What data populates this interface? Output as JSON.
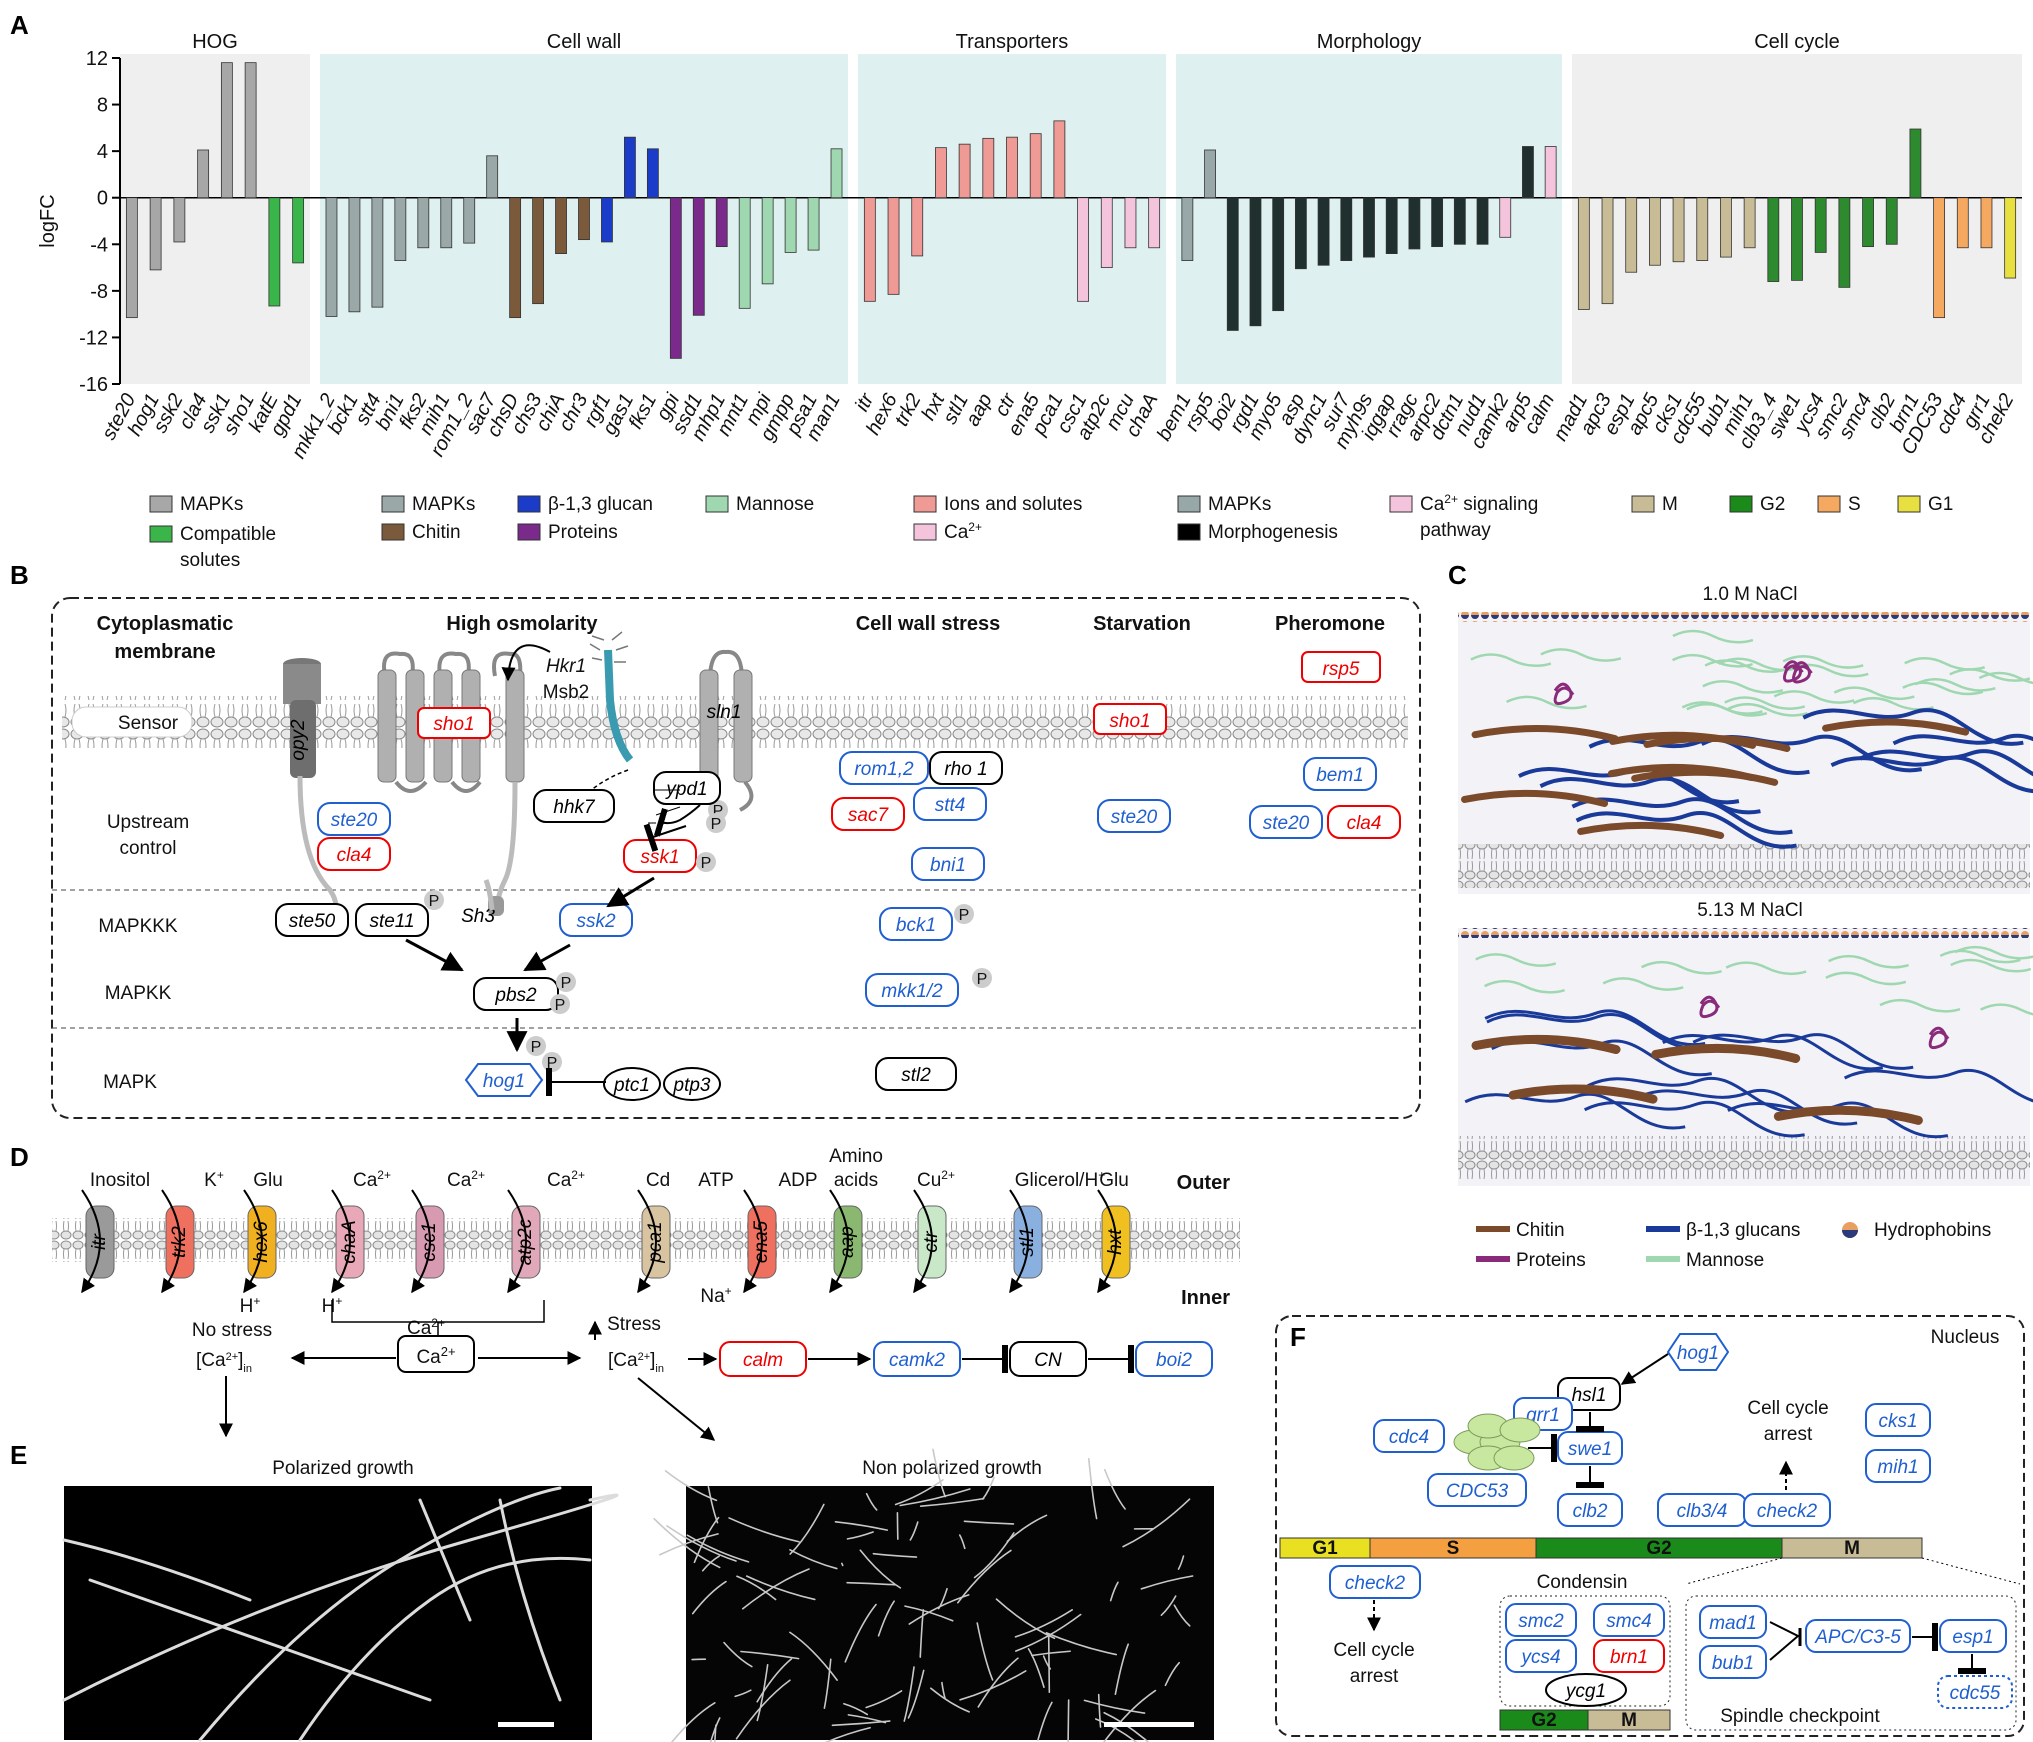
{
  "panels": {
    "A": "A",
    "B": "B",
    "C": "C",
    "D": "D",
    "E": "E",
    "F": "F"
  },
  "chart_data": {
    "type": "bar",
    "ylabel": "logFC",
    "ylim": [
      -16,
      12
    ],
    "yticks": [
      12,
      8,
      4,
      0,
      -4,
      -8,
      -12,
      -16
    ],
    "groups": [
      {
        "name": "HOG",
        "bg": "#efefef",
        "bars": [
          {
            "g": "ste20",
            "v": -10.3,
            "c": "#a7a7a7"
          },
          {
            "g": "hog1",
            "v": -6.2,
            "c": "#a7a7a7"
          },
          {
            "g": "ssk2",
            "v": -3.8,
            "c": "#a7a7a7"
          },
          {
            "g": "cla4",
            "v": 4.1,
            "c": "#a7a7a7"
          },
          {
            "g": "ssk1",
            "v": 11.6,
            "c": "#a7a7a7"
          },
          {
            "g": "sho1",
            "v": 11.6,
            "c": "#a7a7a7"
          },
          {
            "g": "katE",
            "v": -9.3,
            "c": "#39b54a"
          },
          {
            "g": "gpd1",
            "v": -5.6,
            "c": "#39b54a"
          }
        ]
      },
      {
        "name": "Cell wall",
        "bg": "#dff0f0",
        "bars": [
          {
            "g": "mkk1_2",
            "v": -10.2,
            "c": "#9aa8a8"
          },
          {
            "g": "bck1",
            "v": -9.8,
            "c": "#9aa8a8"
          },
          {
            "g": "stt4",
            "v": -9.4,
            "c": "#9aa8a8"
          },
          {
            "g": "bni1",
            "v": -5.4,
            "c": "#9aa8a8"
          },
          {
            "g": "fks2",
            "v": -4.3,
            "c": "#9aa8a8"
          },
          {
            "g": "mih1",
            "v": -4.3,
            "c": "#9aa8a8"
          },
          {
            "g": "rom1_2",
            "v": -3.9,
            "c": "#9aa8a8"
          },
          {
            "g": "sac7",
            "v": 3.6,
            "c": "#9aa8a8"
          },
          {
            "g": "chsD",
            "v": -10.3,
            "c": "#7a5a3a"
          },
          {
            "g": "chs3",
            "v": -9.1,
            "c": "#7a5a3a"
          },
          {
            "g": "chiA",
            "v": -4.8,
            "c": "#7a5a3a"
          },
          {
            "g": "chr3",
            "v": -3.6,
            "c": "#7a5a3a"
          },
          {
            "g": "rgf1",
            "v": -3.8,
            "c": "#1a3cc8"
          },
          {
            "g": "gas1",
            "v": 5.2,
            "c": "#1a3cc8"
          },
          {
            "g": "fks1",
            "v": 4.2,
            "c": "#1a3cc8"
          },
          {
            "g": "gpi",
            "v": -13.8,
            "c": "#7a2a8a"
          },
          {
            "g": "ssd1",
            "v": -10.1,
            "c": "#7a2a8a"
          },
          {
            "g": "mhp1",
            "v": -4.2,
            "c": "#7a2a8a"
          },
          {
            "g": "mnt1",
            "v": -9.5,
            "c": "#9fd8b0"
          },
          {
            "g": "mpi",
            "v": -7.4,
            "c": "#9fd8b0"
          },
          {
            "g": "gmpp",
            "v": -4.7,
            "c": "#9fd8b0"
          },
          {
            "g": "psa1",
            "v": -4.5,
            "c": "#9fd8b0"
          },
          {
            "g": "man1",
            "v": 4.2,
            "c": "#9fd8b0"
          }
        ]
      },
      {
        "name": "Transporters",
        "bg": "#dff0f0",
        "bars": [
          {
            "g": "itr",
            "v": -8.9,
            "c": "#f09a96"
          },
          {
            "g": "hex6",
            "v": -8.3,
            "c": "#f09a96"
          },
          {
            "g": "trk2",
            "v": -5.0,
            "c": "#f09a96"
          },
          {
            "g": "hxt",
            "v": 4.3,
            "c": "#f09a96"
          },
          {
            "g": "stl1",
            "v": 4.6,
            "c": "#f09a96"
          },
          {
            "g": "aap",
            "v": 5.1,
            "c": "#f09a96"
          },
          {
            "g": "ctr",
            "v": 5.2,
            "c": "#f09a96"
          },
          {
            "g": "ena5",
            "v": 5.5,
            "c": "#f09a96"
          },
          {
            "g": "pca1",
            "v": 6.6,
            "c": "#f09a96"
          },
          {
            "g": "csc1",
            "v": -8.9,
            "c": "#f4c4dc"
          },
          {
            "g": "atp2c",
            "v": -6.0,
            "c": "#f4c4dc"
          },
          {
            "g": "mcu",
            "v": -4.3,
            "c": "#f4c4dc"
          },
          {
            "g": "chaA",
            "v": -4.3,
            "c": "#f4c4dc"
          }
        ]
      },
      {
        "name": "Morphology",
        "bg": "#dff0f0",
        "bars": [
          {
            "g": "bem1",
            "v": -5.4,
            "c": "#98a8a8"
          },
          {
            "g": "rsp5",
            "v": 4.1,
            "c": "#98a8a8"
          },
          {
            "g": "boi2",
            "v": -11.4,
            "c": "#1f302f"
          },
          {
            "g": "rgd1",
            "v": -11.0,
            "c": "#1f302f"
          },
          {
            "g": "myo5",
            "v": -9.7,
            "c": "#1f302f"
          },
          {
            "g": "asp",
            "v": -6.1,
            "c": "#1f302f"
          },
          {
            "g": "dync1",
            "v": -5.8,
            "c": "#1f302f"
          },
          {
            "g": "sur7",
            "v": -5.4,
            "c": "#1f302f"
          },
          {
            "g": "myh9s",
            "v": -5.1,
            "c": "#1f302f"
          },
          {
            "g": "iqgap",
            "v": -4.8,
            "c": "#1f302f"
          },
          {
            "g": "rragc",
            "v": -4.4,
            "c": "#1f302f"
          },
          {
            "g": "arpc2",
            "v": -4.2,
            "c": "#1f302f"
          },
          {
            "g": "dctn1",
            "v": -4.0,
            "c": "#1f302f"
          },
          {
            "g": "nud1",
            "v": -4.0,
            "c": "#1f302f"
          },
          {
            "g": "camk2",
            "v": -3.4,
            "c": "#f4c4dc"
          },
          {
            "g": "arp5",
            "v": 4.4,
            "c": "#1f302f"
          },
          {
            "g": "calm",
            "v": 4.4,
            "c": "#f4c4dc"
          }
        ]
      },
      {
        "name": "Cell cycle",
        "bg": "#efefef",
        "bars": [
          {
            "g": "mad1",
            "v": -9.6,
            "c": "#c8bc96"
          },
          {
            "g": "apc3",
            "v": -9.1,
            "c": "#c8bc96"
          },
          {
            "g": "esp1",
            "v": -6.4,
            "c": "#c8bc96"
          },
          {
            "g": "apc5",
            "v": -5.8,
            "c": "#c8bc96"
          },
          {
            "g": "cks1",
            "v": -5.5,
            "c": "#c8bc96"
          },
          {
            "g": "cdc55",
            "v": -5.4,
            "c": "#c8bc96"
          },
          {
            "g": "bub1",
            "v": -5.1,
            "c": "#c8bc96"
          },
          {
            "g": "mih1",
            "v": -4.3,
            "c": "#c8bc96"
          },
          {
            "g": "clb3_4",
            "v": -7.2,
            "c": "#2e8a2e"
          },
          {
            "g": "swe1",
            "v": -7.1,
            "c": "#2e8a2e"
          },
          {
            "g": "ycs4",
            "v": -4.7,
            "c": "#2e8a2e"
          },
          {
            "g": "smc2",
            "v": -7.7,
            "c": "#2e8a2e"
          },
          {
            "g": "smc4",
            "v": -4.2,
            "c": "#2e8a2e"
          },
          {
            "g": "clb2",
            "v": -4.0,
            "c": "#2e8a2e"
          },
          {
            "g": "brn1",
            "v": 5.9,
            "c": "#2e8a2e"
          },
          {
            "g": "CDC53",
            "v": -10.3,
            "c": "#f4a860"
          },
          {
            "g": "cdc4",
            "v": -4.3,
            "c": "#f4a860"
          },
          {
            "g": "grr1",
            "v": -4.3,
            "c": "#f4a860"
          },
          {
            "g": "chek2",
            "v": -6.9,
            "c": "#e8e040"
          }
        ]
      }
    ]
  },
  "legends": {
    "hog": [
      {
        "label": "MAPKs",
        "c": "#a7a7a7"
      },
      {
        "label": "Compatible",
        "label2": "solutes",
        "c": "#39b54a"
      }
    ],
    "cellwall": [
      {
        "label": "MAPKs",
        "c": "#9aa8a8"
      },
      {
        "label": "β-1,3 glucan",
        "c": "#1a3cc8"
      },
      {
        "label": "Mannose",
        "c": "#9fd8b0"
      },
      {
        "label": "Chitin",
        "c": "#7a5a3a"
      },
      {
        "label": "Proteins",
        "c": "#7a2a8a"
      }
    ],
    "transp": [
      {
        "label": "Ions and solutes",
        "c": "#f09a96"
      },
      {
        "label": "Ca",
        "sup": "2+",
        "c": "#f4c4dc"
      }
    ],
    "morph": [
      {
        "label": "MAPKs",
        "c": "#98a8a8"
      },
      {
        "label": "Morphogenesis",
        "c": "#000000"
      },
      {
        "label": "Ca",
        "sup": "2+",
        "label_tail": " signaling",
        "label2": "pathway",
        "c": "#f4c4dc"
      }
    ],
    "cycle": [
      {
        "label": "M",
        "c": "#c8bc96"
      },
      {
        "label": "G2",
        "c": "#1a8a1a"
      },
      {
        "label": "S",
        "c": "#f4a860"
      },
      {
        "label": "G1",
        "c": "#e8e040"
      }
    ]
  },
  "panelB": {
    "cols": {
      "cyto1": "Cytoplasmatic",
      "cyto2": "membrane",
      "high": "High osmolarity",
      "cws": "Cell wall stress",
      "starv": "Starvation",
      "pher": "Pheromone"
    },
    "rows": {
      "sensor": "Sensor",
      "up1": "Upstream",
      "up2": "control",
      "mapkkk": "MAPKKK",
      "mapkk": "MAPKK",
      "mapk": "MAPK"
    },
    "genes": {
      "opy2": "opy2",
      "sho1": "sho1",
      "hkr1": "Hkr1",
      "msb2": "Msb2",
      "sln1": "sln1",
      "sho1b": "sho1",
      "rsp5": "rsp5",
      "ste20": "ste20",
      "cla4": "cla4",
      "hhk7": "hhk7",
      "ypd1": "ypd1",
      "ssk1": "ssk1",
      "rom12": "rom1,2",
      "rho1": "rho 1",
      "sac7": "sac7",
      "stt4": "stt4",
      "bni1": "bni1",
      "ste20b": "ste20",
      "bem1": "bem1",
      "ste20c": "ste20",
      "cla4b": "cla4",
      "ste50": "ste50",
      "ste11": "ste11",
      "sh3": "Sh3",
      "ssk2": "ssk2",
      "bck1": "bck1",
      "pbs2": "pbs2",
      "mkk12": "mkk1/2",
      "hog1": "hog1",
      "ptc1": "ptc1",
      "ptp3": "ptp3",
      "stl2": "stl2",
      "p": "P"
    }
  },
  "panelC": {
    "top": "1.0 M NaCl",
    "bottom": "5.13 M NaCl",
    "legend": [
      {
        "label": "Chitin",
        "c": "#7a4a2a"
      },
      {
        "label": "β-1,3 glucans",
        "c": "#1a3a9a"
      },
      {
        "label": "Hydrophobins",
        "c": "#e8a060"
      },
      {
        "label": "Proteins",
        "c": "#8a2a7a"
      },
      {
        "label": "Mannose",
        "c": "#9fd8b0"
      }
    ]
  },
  "panelD": {
    "outer": "Outer",
    "inner": "Inner",
    "subs": {
      "inositol": "Inositol",
      "k": "K",
      "kplus": "+",
      "glu": "Glu",
      "h": "H",
      "hplus": "+",
      "ca": "Ca",
      "ca2": "2+",
      "cd": "Cd",
      "atp": "ATP",
      "adp": "ADP",
      "amino1": "Amino",
      "amino2": "acids",
      "cu": "Cu",
      "glyc": "Glicerol/H",
      "na": "Na",
      "glu2": "Glu"
    },
    "transporters": [
      "itr",
      "trk2",
      "hex6",
      "chaA",
      "csc1",
      "atp2c",
      "pca1",
      "ena5",
      "aap",
      "ctr",
      "stl1",
      "hxt"
    ],
    "flow": {
      "nostress": "No stress",
      "stress": "Stress",
      "cain": "[Ca",
      "in": "in",
      "ca2": "Ca",
      "calm": "calm",
      "camk2": "camk2",
      "cn": "CN",
      "boi2": "boi2"
    }
  },
  "panelE": {
    "left": "Polarized growth",
    "right": "Non polarized growth"
  },
  "panelF": {
    "nucleus": "Nucleus",
    "hog1": "hog1",
    "hsl1": "hsl1",
    "grr1": "grr1",
    "cdc4": "cdc4",
    "cdc53": "CDC53",
    "swe1": "swe1",
    "clb2": "clb2",
    "clb34": "clb3/4",
    "check2": "check2",
    "arrest1": "Cell cycle",
    "arrest2": "arrest",
    "cks1": "cks1",
    "mih1": "mih1",
    "phases": [
      "G1",
      "S",
      "G2",
      "M"
    ],
    "check2b": "check2",
    "condensin": "Condensin",
    "smc2": "smc2",
    "smc4": "smc4",
    "ycs4": "ycs4",
    "brn1": "brn1",
    "ycg1": "ycg1",
    "mad1": "mad1",
    "bub1": "bub1",
    "apc": "APC/C3-5",
    "esp1": "esp1",
    "cdc55": "cdc55",
    "spindle": "Spindle checkpoint",
    "g2": "G2",
    "m": "M"
  }
}
